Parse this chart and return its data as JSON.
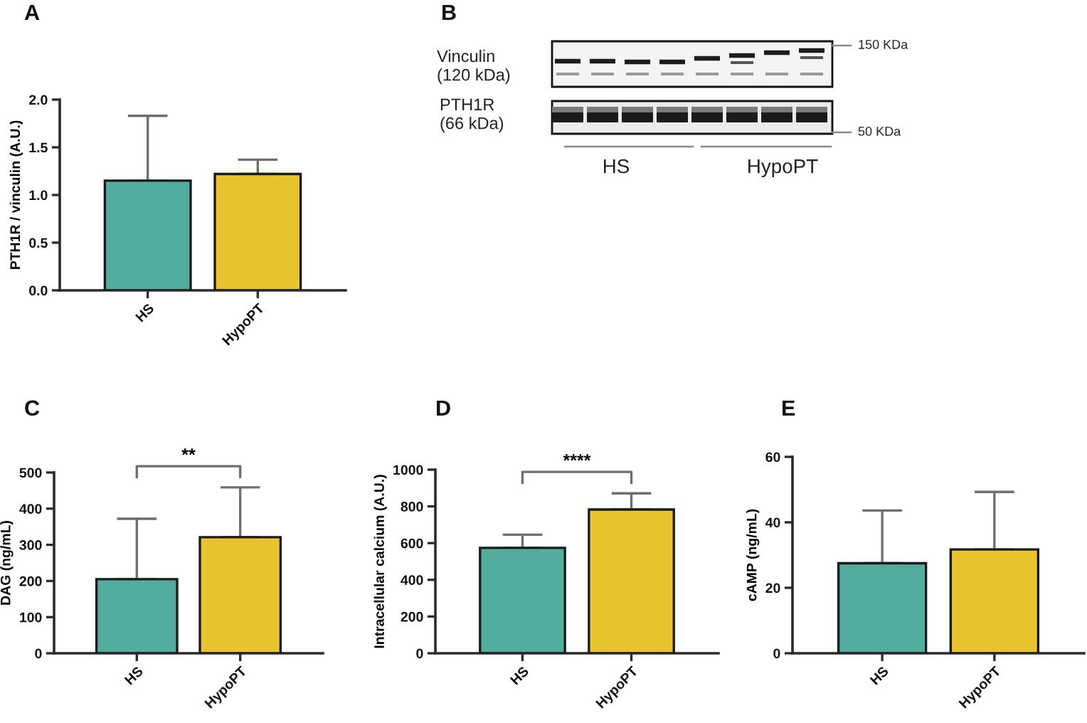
{
  "chart_data": [
    {
      "type": "bar",
      "title": "A",
      "ylabel": "PTH1R / vinculin (A.U.)",
      "categories": [
        "HS",
        "HypoPT"
      ],
      "values": [
        1.15,
        1.22
      ],
      "colors": [
        "#53ad9f",
        "#e8c430"
      ],
      "errors": [
        [
          1.15,
          1.83
        ],
        [
          1.22,
          1.37
        ]
      ],
      "ylim": [
        0,
        2
      ],
      "yticks": [
        {
          "value": 0,
          "label": "0.0"
        },
        0.5,
        {
          "value": 1,
          "label": "1.0"
        },
        1.5,
        {
          "value": 2,
          "label": "2.0"
        }
      ]
    },
    {
      "type": "other",
      "title": "B",
      "annotations": [
        "Vinculin\n(120 kDa)",
        "PTH1R\n(66 kDa)",
        "150 KDa",
        "50 KDa",
        "HS",
        "HypoPT"
      ]
    },
    {
      "type": "bar",
      "title": "C",
      "ylabel": "DAG (ng/mL)",
      "categories": [
        "HS",
        "HypoPT"
      ],
      "values": [
        205,
        321
      ],
      "colors": [
        "#53ad9f",
        "#e8c430"
      ],
      "errors": [
        [
          205,
          372
        ],
        [
          321,
          459
        ]
      ],
      "ylim": [
        0,
        500
      ],
      "yticks": [
        0,
        100,
        200,
        300,
        400,
        500
      ],
      "annotations": [
        "**"
      ]
    },
    {
      "type": "bar",
      "title": "D",
      "ylabel": "Intracellular calcium (A.U.)",
      "categories": [
        "HS",
        "HypoPT"
      ],
      "values": [
        574,
        783
      ],
      "colors": [
        "#53ad9f",
        "#e8c430"
      ],
      "errors": [
        [
          574,
          646
        ],
        [
          783,
          871
        ]
      ],
      "ylim": [
        0,
        1000
      ],
      "yticks": [
        0,
        200,
        400,
        600,
        800,
        1000
      ],
      "annotations": [
        "****"
      ]
    },
    {
      "type": "bar",
      "title": "E",
      "ylabel": "cAMP (ng/mL)",
      "categories": [
        "HS",
        "HypoPT"
      ],
      "values": [
        27.5,
        31.7
      ],
      "colors": [
        "#53ad9f",
        "#e8c430"
      ],
      "errors": [
        [
          27.5,
          43.6
        ],
        [
          31.7,
          49.3
        ]
      ],
      "ylim": [
        0,
        60
      ],
      "yticks": [
        0,
        20,
        40,
        60
      ]
    }
  ]
}
